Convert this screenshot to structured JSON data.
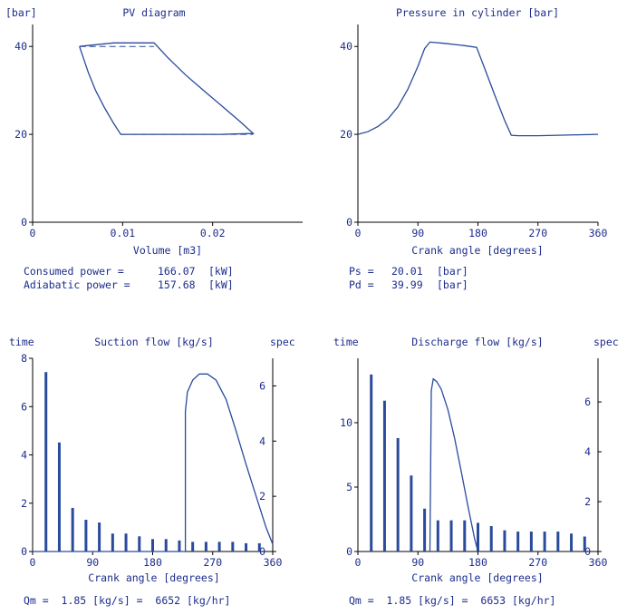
{
  "colors": {
    "text": "#1c2c8c",
    "curve": "#2a4a9c",
    "axis": "#000000"
  },
  "chart_data": [
    {
      "id": "pv",
      "type": "line",
      "title": "PV diagram",
      "unit_label": "[bar]",
      "xlabel": "Volume [m3]",
      "xlim": [
        0,
        0.03
      ],
      "ylim": [
        0,
        45
      ],
      "xticks": [
        {
          "v": 0,
          "t": "0"
        },
        {
          "v": 0.01,
          "t": "0.01"
        },
        {
          "v": 0.02,
          "t": "0.02"
        }
      ],
      "yticks": [
        {
          "v": 0,
          "t": "0"
        },
        {
          "v": 20,
          "t": "20"
        },
        {
          "v": 40,
          "t": "40"
        }
      ],
      "series": [
        {
          "style": "solid",
          "x": [
            0.0052,
            0.006,
            0.0065,
            0.009,
            0.0135,
            0.015,
            0.017,
            0.019,
            0.021,
            0.023,
            0.0245,
            0.021,
            0.016,
            0.012,
            0.0098,
            0.009,
            0.008,
            0.007,
            0.0062,
            0.0052
          ],
          "y": [
            40.0,
            40.2,
            40.3,
            40.8,
            40.8,
            37.5,
            33.5,
            30.0,
            26.5,
            23.0,
            20.2,
            20.0,
            20.0,
            20.0,
            20.0,
            22.5,
            26.0,
            30.0,
            34.0,
            40.0
          ]
        },
        {
          "style": "dashed",
          "x": [
            0.0052,
            0.0135
          ],
          "y": [
            40.0,
            40.0
          ]
        },
        {
          "style": "dashed",
          "x": [
            0.0098,
            0.0245
          ],
          "y": [
            20.0,
            20.0
          ]
        }
      ]
    },
    {
      "id": "pressure",
      "type": "line",
      "title": "Pressure in cylinder [bar]",
      "xlabel": "Crank angle [degrees]",
      "xlim": [
        0,
        360
      ],
      "ylim": [
        0,
        45
      ],
      "xticks": [
        {
          "v": 0,
          "t": "0"
        },
        {
          "v": 90,
          "t": "90"
        },
        {
          "v": 180,
          "t": "180"
        },
        {
          "v": 270,
          "t": "270"
        },
        {
          "v": 360,
          "t": "360"
        }
      ],
      "yticks": [
        {
          "v": 0,
          "t": "0"
        },
        {
          "v": 20,
          "t": "20"
        },
        {
          "v": 40,
          "t": "40"
        }
      ],
      "series": [
        {
          "style": "solid",
          "x": [
            0,
            15,
            30,
            45,
            60,
            75,
            90,
            100,
            108,
            130,
            160,
            178,
            190,
            205,
            220,
            230,
            240,
            270,
            300,
            330,
            360
          ],
          "y": [
            20.0,
            20.6,
            21.8,
            23.5,
            26.3,
            30.3,
            35.5,
            39.5,
            41.0,
            40.7,
            40.2,
            39.8,
            35.0,
            29.0,
            23.2,
            19.8,
            19.7,
            19.7,
            19.8,
            19.9,
            20.0
          ]
        }
      ]
    },
    {
      "id": "suction",
      "type": "bar",
      "title": "Suction flow [kg/s]",
      "left_label": "time",
      "right_label": "spec",
      "xlabel": "Crank angle [degrees]",
      "xlim": [
        0,
        360
      ],
      "ylim": [
        0,
        8
      ],
      "y2lim": [
        0,
        7.0
      ],
      "xticks": [
        {
          "v": 0,
          "t": "0"
        },
        {
          "v": 90,
          "t": "90"
        },
        {
          "v": 180,
          "t": "180"
        },
        {
          "v": 270,
          "t": "270"
        },
        {
          "v": 360,
          "t": "360"
        }
      ],
      "yticks": [
        {
          "v": 0,
          "t": "0"
        },
        {
          "v": 2,
          "t": "2"
        },
        {
          "v": 4,
          "t": "4"
        },
        {
          "v": 6,
          "t": "6"
        },
        {
          "v": 8,
          "t": "8"
        }
      ],
      "y2ticks": [
        {
          "v": 0,
          "t": "0"
        },
        {
          "v": 2,
          "t": "2"
        },
        {
          "v": 4,
          "t": "4"
        },
        {
          "v": 6,
          "t": "6"
        }
      ],
      "bars": {
        "x": [
          20,
          40,
          60,
          80,
          100,
          120,
          140,
          160,
          180,
          200,
          220,
          240,
          260,
          280,
          300,
          320,
          340
        ],
        "values": [
          6.5,
          3.95,
          1.58,
          1.15,
          1.05,
          0.65,
          0.65,
          0.55,
          0.45,
          0.45,
          0.4,
          0.35,
          0.35,
          0.35,
          0.35,
          0.3,
          0.3
        ]
      },
      "series": [
        {
          "style": "solid",
          "x": [
            0,
            229,
            229,
            232,
            240,
            250,
            262,
            275,
            290,
            305,
            320,
            335,
            350,
            360
          ],
          "y": [
            0,
            0,
            5.8,
            6.6,
            7.1,
            7.35,
            7.35,
            7.1,
            6.3,
            5.0,
            3.6,
            2.3,
            1.0,
            0.3
          ]
        }
      ]
    },
    {
      "id": "discharge",
      "type": "bar",
      "title": "Discharge flow [kg/s]",
      "left_label": "time",
      "right_label": "spec",
      "xlabel": "Crank angle [degrees]",
      "xlim": [
        0,
        360
      ],
      "ylim": [
        0,
        15
      ],
      "y2lim": [
        0,
        7.75
      ],
      "xticks": [
        {
          "v": 0,
          "t": "0"
        },
        {
          "v": 90,
          "t": "90"
        },
        {
          "v": 180,
          "t": "180"
        },
        {
          "v": 270,
          "t": "270"
        },
        {
          "v": 360,
          "t": "360"
        }
      ],
      "yticks": [
        {
          "v": 0,
          "t": "0"
        },
        {
          "v": 5,
          "t": "5"
        },
        {
          "v": 10,
          "t": "10"
        }
      ],
      "y2ticks": [
        {
          "v": 0,
          "t": "0"
        },
        {
          "v": 2,
          "t": "2"
        },
        {
          "v": 4,
          "t": "4"
        },
        {
          "v": 6,
          "t": "6"
        }
      ],
      "bars": {
        "x": [
          20,
          40,
          60,
          80,
          100,
          120,
          140,
          160,
          180,
          200,
          220,
          240,
          260,
          280,
          300,
          320,
          340
        ],
        "values": [
          7.1,
          6.05,
          4.55,
          3.05,
          1.72,
          1.25,
          1.25,
          1.25,
          1.15,
          1.02,
          0.85,
          0.8,
          0.8,
          0.8,
          0.8,
          0.72,
          0.6
        ]
      },
      "series": [
        {
          "style": "solid",
          "x": [
            108,
            110,
            113,
            118,
            125,
            135,
            145,
            155,
            165,
            175,
            180
          ],
          "y": [
            0,
            12.5,
            13.4,
            13.2,
            12.6,
            11.0,
            8.8,
            6.2,
            3.5,
            1.0,
            0
          ]
        }
      ]
    }
  ],
  "readouts": {
    "pv_line1_label": "Consumed  power =",
    "pv_line1_value": "166.07",
    "pv_line1_unit": "[kW]",
    "pv_line2_label": "Adiabatic power =",
    "pv_line2_value": "157.68",
    "pv_line2_unit": "[kW]",
    "ps_label": "Ps =",
    "ps_value": "20.01",
    "ps_unit": "[bar]",
    "pd_label": "Pd =",
    "pd_value": "39.99",
    "pd_unit": "[bar]",
    "suction_qm": "Qm =  1.85 [kg/s] =  6652 [kg/hr]",
    "discharge_qm": "Qm =  1.85 [kg/s] =  6653 [kg/hr]"
  }
}
